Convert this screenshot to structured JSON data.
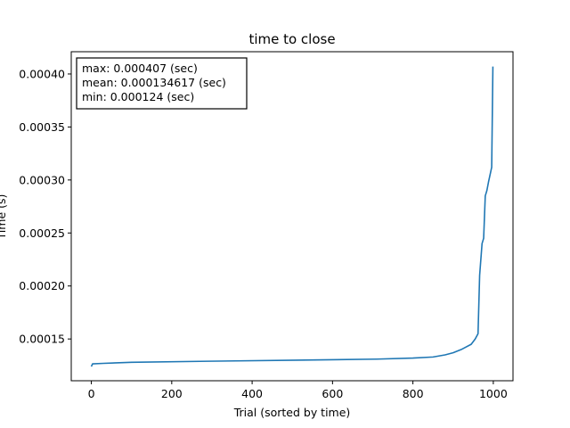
{
  "chart_data": {
    "type": "line",
    "title": "time to close",
    "xlabel": "Trial (sorted by time)",
    "ylabel": "Time (s)",
    "xlim": [
      -50,
      1049
    ],
    "ylim": [
      0.0001106,
      0.000421
    ],
    "xticks": [
      0,
      200,
      400,
      600,
      800,
      1000
    ],
    "xtick_labels": [
      "0",
      "200",
      "400",
      "600",
      "800",
      "1000"
    ],
    "yticks": [
      0.00015,
      0.0002,
      0.00025,
      0.0003,
      0.00035,
      0.0004
    ],
    "ytick_labels": [
      "0.00015",
      "0.00020",
      "0.00025",
      "0.00030",
      "0.00035",
      "0.00040"
    ],
    "grid": false,
    "stats_box": {
      "position": "top-left",
      "lines": [
        "max: 0.000407 (sec)",
        "mean: 0.000134617 (sec)",
        "min: 0.000124 (sec)"
      ]
    },
    "series": [
      {
        "color": "#1f77b4",
        "x": [
          0,
          3,
          30,
          100,
          290,
          510,
          710,
          800,
          850,
          880,
          900,
          920,
          930,
          945,
          955,
          962,
          966,
          968,
          970,
          972,
          976,
          980,
          984,
          988,
          992,
          996,
          999
        ],
        "y": [
          0.000124,
          0.0001265,
          0.000127,
          0.000128,
          0.000129,
          0.00013,
          0.000131,
          0.000132,
          0.000133,
          0.000135,
          0.000137,
          0.00014,
          0.000142,
          0.000145,
          0.00015,
          0.000155,
          0.00021,
          0.00022,
          0.00023,
          0.00024,
          0.000245,
          0.000285,
          0.00029,
          0.000298,
          0.000305,
          0.000312,
          0.000407
        ]
      }
    ]
  }
}
